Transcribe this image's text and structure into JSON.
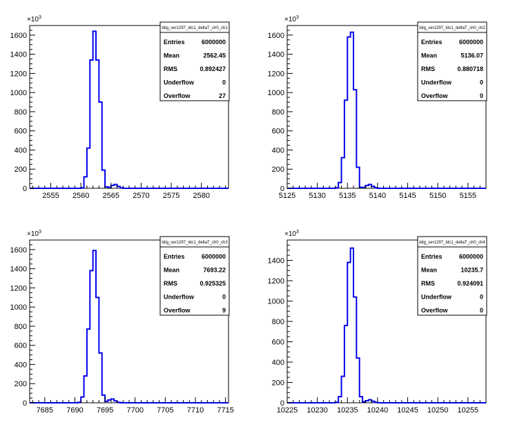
{
  "colors": {
    "line": "#0000ee",
    "frame": "#000000",
    "background": "#ffffff"
  },
  "y_exponent_base": "10",
  "y_exponent_power": "3",
  "chart_data": [
    {
      "type": "bar",
      "title": "tdig_ser1297_tdc1_deltaT_ch0_ch1",
      "xlabel": "",
      "ylabel": "",
      "xlim": [
        2551.5,
        2584.5
      ],
      "ylim": [
        0,
        1700
      ],
      "xticks": [
        2555,
        2560,
        2565,
        2570,
        2575,
        2580
      ],
      "yticks": [
        0,
        200,
        400,
        600,
        800,
        1000,
        1200,
        1400,
        1600
      ],
      "bin_edges_start": 2560.0,
      "bin_width": 0.5,
      "values": [
        5,
        120,
        420,
        1340,
        1640,
        1340,
        900,
        190,
        15,
        10,
        30,
        40,
        20,
        5
      ],
      "stats": {
        "Entries": "6000000",
        "Mean": "2562.45",
        "RMS": "0.892427",
        "Underflow": "0",
        "Overflow": "27"
      }
    },
    {
      "type": "bar",
      "title": "tdig_ser1297_tdc1_deltaT_ch0_ch2",
      "xlabel": "",
      "ylabel": "",
      "xlim": [
        5125,
        5158
      ],
      "ylim": [
        0,
        1700
      ],
      "xticks": [
        5125,
        5130,
        5135,
        5140,
        5145,
        5150,
        5155
      ],
      "yticks": [
        0,
        200,
        400,
        600,
        800,
        1000,
        1200,
        1400,
        1600
      ],
      "bin_edges_start": 5133.0,
      "bin_width": 0.5,
      "values": [
        5,
        60,
        320,
        920,
        1580,
        1630,
        1030,
        220,
        10,
        10,
        30,
        40,
        20,
        5
      ],
      "stats": {
        "Entries": "6000000",
        "Mean": "5136.07",
        "RMS": "0.880718",
        "Underflow": "0",
        "Overflow": "0"
      }
    },
    {
      "type": "bar",
      "title": "tdig_ser1297_tdc1_deltaT_ch0_ch3",
      "xlabel": "",
      "ylabel": "",
      "xlim": [
        7682.5,
        7715.5
      ],
      "ylim": [
        0,
        1700
      ],
      "xticks": [
        7685,
        7690,
        7695,
        7700,
        7705,
        7710,
        7715
      ],
      "yticks": [
        0,
        200,
        400,
        600,
        800,
        1000,
        1200,
        1400,
        1600
      ],
      "bin_edges_start": 7690.5,
      "bin_width": 0.5,
      "values": [
        5,
        60,
        280,
        770,
        1380,
        1590,
        1100,
        520,
        80,
        15,
        30,
        40,
        20,
        5
      ],
      "stats": {
        "Entries": "6000000",
        "Mean": "7693.22",
        "RMS": "0.925325",
        "Underflow": "0",
        "Overflow": "9"
      }
    },
    {
      "type": "bar",
      "title": "tdig_ser1297_tdc1_deltaT_ch0_ch4",
      "xlabel": "",
      "ylabel": "",
      "xlim": [
        10225,
        10258
      ],
      "ylim": [
        0,
        1600
      ],
      "xticks": [
        10225,
        10230,
        10235,
        10240,
        10245,
        10250,
        10255
      ],
      "yticks": [
        0,
        200,
        400,
        600,
        800,
        1000,
        1200,
        1400
      ],
      "bin_edges_start": 10233.0,
      "bin_width": 0.5,
      "values": [
        5,
        60,
        260,
        760,
        1380,
        1520,
        1040,
        440,
        60,
        10,
        20,
        30,
        15,
        5
      ],
      "stats": {
        "Entries": "6000000",
        "Mean": "10235.7",
        "RMS": "0.924091",
        "Underflow": "0",
        "Overflow": "0"
      }
    }
  ]
}
